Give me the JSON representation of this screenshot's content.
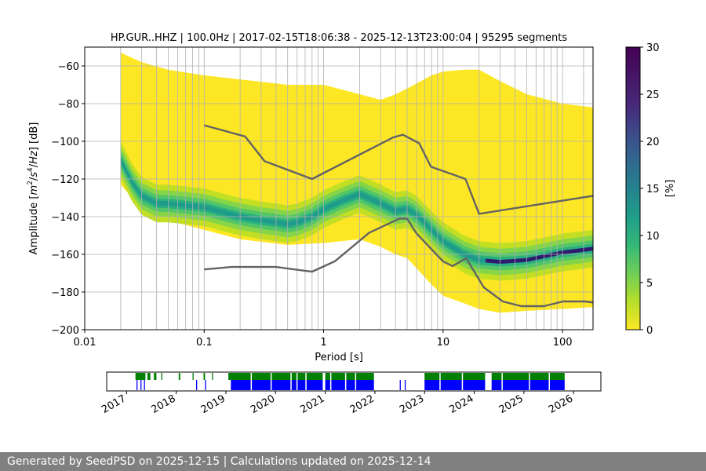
{
  "chart_data": [
    {
      "type": "heatmap",
      "title": "HP.GUR..HHZ | 100.0Hz | 2017-02-15T18:06:38 - 2025-12-13T23:00:04 | 95295 segments",
      "xlabel": "Period [s]",
      "ylabel_parts": [
        "Amplitude [",
        "m",
        "2",
        "/",
        "s",
        "4",
        "/",
        "Hz",
        "] [dB]"
      ],
      "x_scale": "log",
      "xlim": [
        0.01,
        180
      ],
      "ylim": [
        -200,
        -50
      ],
      "x_ticks": [
        {
          "v": 0.01,
          "label": "0.01"
        },
        {
          "v": 0.1,
          "label": "0.1"
        },
        {
          "v": 1,
          "label": "1"
        },
        {
          "v": 10,
          "label": "10"
        },
        {
          "v": 100,
          "label": "100"
        }
      ],
      "y_ticks": [
        {
          "v": -60,
          "label": "−60"
        },
        {
          "v": -80,
          "label": "−80"
        },
        {
          "v": -100,
          "label": "−100"
        },
        {
          "v": -120,
          "label": "−120"
        },
        {
          "v": -140,
          "label": "−140"
        },
        {
          "v": -160,
          "label": "−160"
        },
        {
          "v": -180,
          "label": "−180"
        },
        {
          "v": -200,
          "label": "−200"
        }
      ],
      "grid": true,
      "colorbar": {
        "label": "[%]",
        "range": [
          0,
          30
        ],
        "ticks": [
          {
            "v": 0,
            "label": "0"
          },
          {
            "v": 5,
            "label": "5"
          },
          {
            "v": 10,
            "label": "10"
          },
          {
            "v": 15,
            "label": "15"
          },
          {
            "v": 20,
            "label": "20"
          },
          {
            "v": 25,
            "label": "25"
          },
          {
            "v": 30,
            "label": "30"
          }
        ],
        "colormap": "viridis_r"
      },
      "density": {
        "mode_curve": [
          [
            0.02,
            -110
          ],
          [
            0.025,
            -122
          ],
          [
            0.03,
            -129
          ],
          [
            0.04,
            -133
          ],
          [
            0.05,
            -133
          ],
          [
            0.07,
            -134
          ],
          [
            0.1,
            -135
          ],
          [
            0.15,
            -138
          ],
          [
            0.2,
            -140
          ],
          [
            0.3,
            -142
          ],
          [
            0.4,
            -143
          ],
          [
            0.5,
            -144
          ],
          [
            0.6,
            -143
          ],
          [
            0.8,
            -140
          ],
          [
            1,
            -136
          ],
          [
            1.5,
            -131
          ],
          [
            2,
            -128
          ],
          [
            3,
            -133
          ],
          [
            4,
            -137
          ],
          [
            5,
            -136
          ],
          [
            6,
            -139
          ],
          [
            8,
            -147
          ],
          [
            10,
            -153
          ],
          [
            15,
            -160
          ],
          [
            20,
            -163
          ],
          [
            30,
            -164
          ],
          [
            50,
            -163
          ],
          [
            100,
            -159
          ],
          [
            180,
            -157
          ]
        ],
        "upper_edge": [
          [
            0.02,
            -53
          ],
          [
            0.03,
            -58
          ],
          [
            0.05,
            -62
          ],
          [
            0.1,
            -65
          ],
          [
            0.5,
            -70
          ],
          [
            1,
            -70
          ],
          [
            2,
            -75
          ],
          [
            3,
            -78
          ],
          [
            4,
            -75
          ],
          [
            5,
            -72
          ],
          [
            8,
            -65
          ],
          [
            10,
            -63
          ],
          [
            15,
            -62
          ],
          [
            20,
            -62
          ],
          [
            30,
            -68
          ],
          [
            50,
            -75
          ],
          [
            100,
            -80
          ],
          [
            180,
            -82
          ]
        ],
        "lower_edge": [
          [
            0.02,
            -123
          ],
          [
            0.03,
            -136
          ],
          [
            0.05,
            -142
          ],
          [
            0.1,
            -147
          ],
          [
            0.2,
            -152
          ],
          [
            0.5,
            -155
          ],
          [
            1,
            -154
          ],
          [
            2,
            -152
          ],
          [
            3,
            -156
          ],
          [
            4,
            -160
          ],
          [
            5,
            -162
          ],
          [
            8,
            -176
          ],
          [
            10,
            -182
          ],
          [
            15,
            -186
          ],
          [
            20,
            -189
          ],
          [
            30,
            -191
          ],
          [
            50,
            -190
          ],
          [
            100,
            -189
          ],
          [
            180,
            -188
          ]
        ]
      },
      "noise_models": [
        {
          "name": "high",
          "points": [
            [
              0.1,
              -91.5
            ],
            [
              0.22,
              -97.4
            ],
            [
              0.32,
              -110.5
            ],
            [
              0.8,
              -120
            ],
            [
              3.8,
              -98
            ],
            [
              4.6,
              -96.5
            ],
            [
              6.3,
              -101
            ],
            [
              7.9,
              -113.5
            ],
            [
              15.4,
              -120
            ],
            [
              20,
              -138.5
            ],
            [
              354.8,
              -126
            ]
          ]
        },
        {
          "name": "low",
          "points": [
            [
              0.1,
              -168
            ],
            [
              0.17,
              -166.7
            ],
            [
              0.4,
              -166.7
            ],
            [
              0.8,
              -169.2
            ],
            [
              1.24,
              -163.7
            ],
            [
              2.4,
              -148.6
            ],
            [
              4.3,
              -141.1
            ],
            [
              5,
              -141.1
            ],
            [
              6,
              -149
            ],
            [
              10,
              -163.8
            ],
            [
              12,
              -166.2
            ],
            [
              15.6,
              -162.1
            ],
            [
              21.9,
              -177.5
            ],
            [
              31.6,
              -185
            ],
            [
              45,
              -187.5
            ],
            [
              70,
              -187.5
            ],
            [
              101,
              -185
            ],
            [
              154,
              -185
            ],
            [
              328,
              -187.5
            ]
          ]
        }
      ],
      "period_grid_lines": [
        0.02,
        0.03,
        0.04,
        0.05,
        0.06,
        0.07,
        0.08,
        0.09,
        0.2,
        0.3,
        0.4,
        0.5,
        0.6,
        0.7,
        0.8,
        0.9,
        2,
        3,
        4,
        5,
        6,
        7,
        8,
        9,
        20,
        30,
        40,
        50,
        60,
        70,
        80,
        90,
        150
      ]
    },
    {
      "type": "timeline",
      "x_ticks": [
        "2017",
        "2018",
        "2019",
        "2020",
        "2021",
        "2022",
        "2023",
        "2024",
        "2025",
        "2026"
      ],
      "series": [
        {
          "color": "#008000",
          "segments": [
            [
              2017.18,
              2017.38
            ],
            [
              2017.42,
              2017.48
            ],
            [
              2017.55,
              2017.6
            ],
            [
              2017.7,
              2017.72
            ],
            [
              2018.05,
              2018.08
            ],
            [
              2018.33,
              2018.35
            ],
            [
              2018.55,
              2018.58
            ],
            [
              2018.72,
              2018.74
            ],
            [
              2019.05,
              2019.15
            ],
            [
              2019.1,
              2020.95
            ],
            [
              2021.0,
              2021.98
            ],
            [
              2023.0,
              2024.22
            ],
            [
              2024.35,
              2025.82
            ]
          ]
        },
        {
          "color": "#0000ff",
          "segments": [
            [
              2017.2,
              2017.22
            ],
            [
              2017.28,
              2017.3
            ],
            [
              2017.35,
              2017.37
            ],
            [
              2018.4,
              2018.42
            ],
            [
              2018.58,
              2018.6
            ],
            [
              2019.1,
              2020.95
            ],
            [
              2021.0,
              2021.98
            ],
            [
              2022.5,
              2022.52
            ],
            [
              2022.6,
              2022.62
            ],
            [
              2023.0,
              2024.22
            ],
            [
              2024.35,
              2025.82
            ]
          ]
        }
      ],
      "gaps": [
        2019.5,
        2019.9,
        2020.3,
        2020.42,
        2020.6,
        2021.1,
        2021.4,
        2021.6,
        2023.3,
        2023.75,
        2024.55,
        2025.1,
        2025.5
      ]
    }
  ],
  "footer": {
    "text": "Generated by SeedPSD on 2025-12-15 | Calculations updated on 2025-12-14"
  }
}
